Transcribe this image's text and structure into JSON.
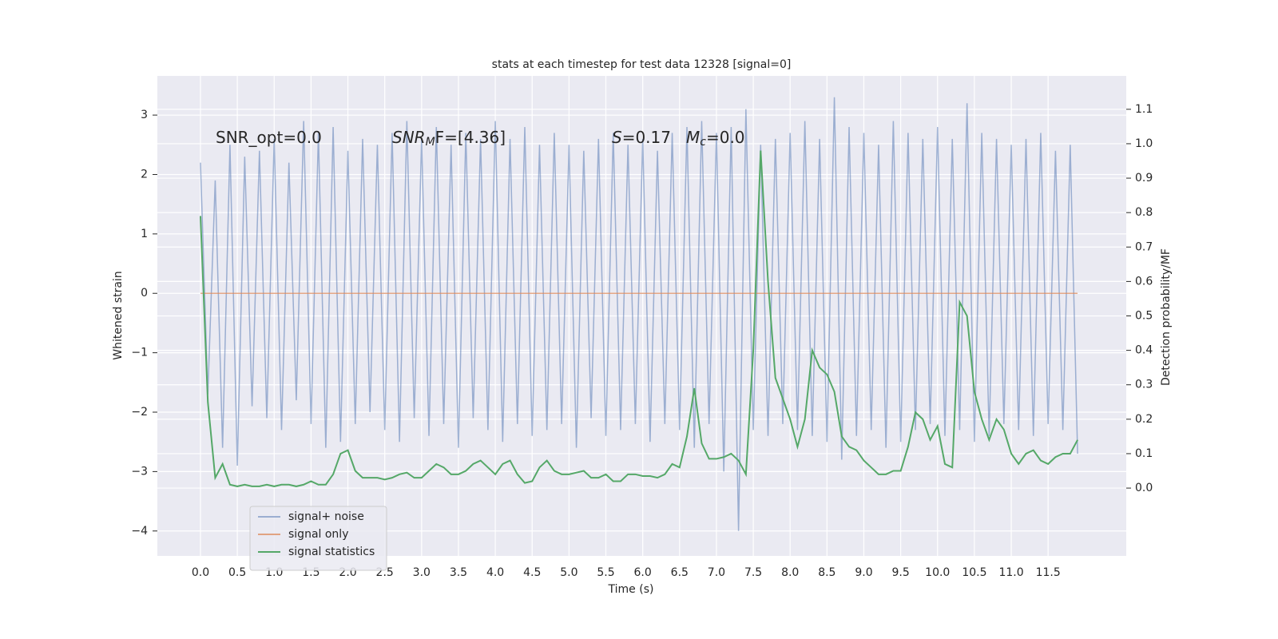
{
  "chart_data": {
    "type": "line",
    "title": "stats at each timestep for test data 12328 [signal=0]",
    "xlabel": "Time (s)",
    "ylabel": "Whitened strain",
    "y2label": "Detection probability/MF",
    "xlim": [
      -0.585,
      12.56
    ],
    "ylim": [
      -4.42,
      3.66
    ],
    "y2lim": [
      -0.197,
      1.197
    ],
    "grid": true,
    "legend": "lower left",
    "xticks": [
      {
        "value": 0,
        "label": "0.0"
      },
      {
        "value": 0.5,
        "label": "0.5"
      },
      {
        "value": 1,
        "label": "1.0"
      },
      {
        "value": 1.5,
        "label": "1.5"
      },
      {
        "value": 2,
        "label": "2.0"
      },
      {
        "value": 2.5,
        "label": "2.5"
      },
      {
        "value": 3,
        "label": "3.0"
      },
      {
        "value": 3.5,
        "label": "3.5"
      },
      {
        "value": 4,
        "label": "4.0"
      },
      {
        "value": 4.5,
        "label": "4.5"
      },
      {
        "value": 5,
        "label": "5.0"
      },
      {
        "value": 5.5,
        "label": "5.5"
      },
      {
        "value": 6,
        "label": "6.0"
      },
      {
        "value": 6.5,
        "label": "6.5"
      },
      {
        "value": 7,
        "label": "7.0"
      },
      {
        "value": 7.5,
        "label": "7.5"
      },
      {
        "value": 8,
        "label": "8.0"
      },
      {
        "value": 8.5,
        "label": "8.5"
      },
      {
        "value": 9,
        "label": "9.0"
      },
      {
        "value": 9.5,
        "label": "9.5"
      },
      {
        "value": 10,
        "label": "10.0"
      },
      {
        "value": 10.5,
        "label": "10.5"
      },
      {
        "value": 11,
        "label": "11.0"
      },
      {
        "value": 11.5,
        "label": "11.5"
      }
    ],
    "yticks": [
      {
        "value": -4,
        "label": "−4"
      },
      {
        "value": -3,
        "label": "−3"
      },
      {
        "value": -2,
        "label": "−2"
      },
      {
        "value": -1,
        "label": "−1"
      },
      0,
      1,
      2,
      3
    ],
    "y2ticks": [
      {
        "value": 0,
        "label": "0.0"
      },
      {
        "value": 0.1,
        "label": "0.1"
      },
      {
        "value": 0.2,
        "label": "0.2"
      },
      {
        "value": 0.3,
        "label": "0.3"
      },
      {
        "value": 0.4,
        "label": "0.4"
      },
      {
        "value": 0.5,
        "label": "0.5"
      },
      {
        "value": 0.6,
        "label": "0.6"
      },
      {
        "value": 0.7,
        "label": "0.7"
      },
      {
        "value": 0.8,
        "label": "0.8"
      },
      {
        "value": 0.9,
        "label": "0.9"
      },
      {
        "value": 1,
        "label": "1.0"
      },
      {
        "value": 1.1,
        "label": "1.1"
      }
    ],
    "annotations": [
      {
        "parts": [
          {
            "text": "SNR_opt=0.0"
          }
        ]
      },
      {
        "parts": [
          {
            "text": "SNR",
            "italic": true
          },
          {
            "text": "M",
            "italic": true,
            "sub": true
          },
          {
            "text": "F=[4.36]"
          }
        ]
      },
      {
        "parts": [
          {
            "text": "S",
            "italic": true
          },
          {
            "text": "=0.17"
          }
        ]
      },
      {
        "parts": [
          {
            "text": "M",
            "italic": true
          },
          {
            "text": "c",
            "italic": true,
            "sub": true
          },
          {
            "text": "=0.0"
          }
        ]
      }
    ],
    "x": [
      0,
      0.1,
      0.2,
      0.3,
      0.4,
      0.5,
      0.6,
      0.7,
      0.8,
      0.9,
      1,
      1.1,
      1.2,
      1.3,
      1.4,
      1.5,
      1.6,
      1.7,
      1.8,
      1.9,
      2,
      2.1,
      2.2,
      2.3,
      2.4,
      2.5,
      2.6,
      2.7,
      2.8,
      2.9,
      3,
      3.1,
      3.2,
      3.3,
      3.4,
      3.5,
      3.6,
      3.7,
      3.8,
      3.9,
      4,
      4.1,
      4.2,
      4.3,
      4.4,
      4.5,
      4.6,
      4.7,
      4.8,
      4.9,
      5,
      5.1,
      5.2,
      5.3,
      5.4,
      5.5,
      5.6,
      5.7,
      5.8,
      5.9,
      6,
      6.1,
      6.2,
      6.3,
      6.4,
      6.5,
      6.6,
      6.7,
      6.8,
      6.9,
      7,
      7.1,
      7.2,
      7.3,
      7.4,
      7.5,
      7.6,
      7.7,
      7.8,
      7.9,
      8,
      8.1,
      8.2,
      8.3,
      8.4,
      8.5,
      8.6,
      8.7,
      8.8,
      8.9,
      9,
      9.1,
      9.2,
      9.3,
      9.4,
      9.5,
      9.6,
      9.7,
      9.8,
      9.9,
      10,
      10.1,
      10.2,
      10.3,
      10.4,
      10.5,
      10.6,
      10.7,
      10.8,
      10.9,
      11,
      11.1,
      11.2,
      11.3,
      11.4,
      11.5,
      11.6,
      11.7,
      11.8,
      11.9
    ],
    "series": [
      {
        "name": "signal+ noise",
        "color": "#4c72b0",
        "opacity": 0.5,
        "values": [
          2.2,
          -1.7,
          1.9,
          -2.6,
          2.5,
          -2.9,
          2.3,
          -1.9,
          2.4,
          -2.1,
          2.6,
          -2.3,
          2.2,
          -1.8,
          2.9,
          -2.2,
          2.7,
          -2.6,
          2.8,
          -2.5,
          2.4,
          -2.2,
          2.6,
          -2.0,
          2.5,
          -2.3,
          2.7,
          -2.5,
          2.9,
          -2.1,
          2.6,
          -2.4,
          2.8,
          -2.2,
          2.5,
          -2.6,
          2.7,
          -2.1,
          2.6,
          -2.3,
          2.9,
          -2.5,
          2.6,
          -2.2,
          2.8,
          -2.4,
          2.5,
          -2.3,
          2.7,
          -2.2,
          2.5,
          -2.6,
          2.4,
          -2.1,
          2.6,
          -2.4,
          2.7,
          -2.3,
          2.5,
          -2.2,
          2.6,
          -2.5,
          2.4,
          -2.2,
          2.7,
          -2.3,
          2.8,
          -2.6,
          2.9,
          -2.2,
          2.7,
          -3.0,
          2.8,
          -4.0,
          3.1,
          -2.3,
          2.5,
          -2.4,
          2.6,
          -2.2,
          2.7,
          -2.3,
          2.9,
          -2.4,
          2.6,
          -2.5,
          3.3,
          -2.8,
          2.8,
          -2.4,
          2.7,
          -2.3,
          2.5,
          -2.6,
          2.9,
          -2.5,
          2.7,
          -2.3,
          2.6,
          -2.2,
          2.8,
          -2.4,
          2.6,
          -2.3,
          3.2,
          -2.5,
          2.7,
          -2.4,
          2.6,
          -2.2,
          2.5,
          -2.3,
          2.6,
          -2.4,
          2.7,
          -2.2,
          2.4,
          -2.3,
          2.5,
          -2.7
        ]
      },
      {
        "name": "signal only",
        "color": "#dd8452",
        "opacity": 0.7,
        "values": [
          0,
          0,
          0,
          0,
          0,
          0,
          0,
          0,
          0,
          0,
          0,
          0,
          0,
          0,
          0,
          0,
          0,
          0,
          0,
          0,
          0,
          0,
          0,
          0,
          0,
          0,
          0,
          0,
          0,
          0,
          0,
          0,
          0,
          0,
          0,
          0,
          0,
          0,
          0,
          0,
          0,
          0,
          0,
          0,
          0,
          0,
          0,
          0,
          0,
          0,
          0,
          0,
          0,
          0,
          0,
          0,
          0,
          0,
          0,
          0,
          0,
          0,
          0,
          0,
          0,
          0,
          0,
          0,
          0,
          0,
          0,
          0,
          0,
          0,
          0,
          0,
          0,
          0,
          0,
          0,
          0,
          0,
          0,
          0,
          0,
          0,
          0,
          0,
          0,
          0,
          0,
          0,
          0,
          0,
          0,
          0,
          0,
          0,
          0,
          0,
          0,
          0,
          0,
          0,
          0,
          0,
          0,
          0,
          0,
          0,
          0,
          0,
          0,
          0,
          0,
          0,
          0,
          0,
          0,
          0
        ]
      },
      {
        "name": "signal statistics",
        "color": "#55a868",
        "opacity": 1,
        "axis": "y2",
        "values": [
          0.79,
          0.25,
          0.03,
          0.07,
          0.01,
          0.005,
          0.01,
          0.005,
          0.005,
          0.01,
          0.005,
          0.01,
          0.01,
          0.005,
          0.01,
          0.02,
          0.01,
          0.01,
          0.04,
          0.1,
          0.11,
          0.05,
          0.03,
          0.03,
          0.03,
          0.025,
          0.03,
          0.04,
          0.045,
          0.03,
          0.03,
          0.05,
          0.07,
          0.06,
          0.04,
          0.04,
          0.05,
          0.07,
          0.08,
          0.06,
          0.04,
          0.07,
          0.08,
          0.04,
          0.015,
          0.02,
          0.06,
          0.08,
          0.05,
          0.04,
          0.04,
          0.045,
          0.05,
          0.03,
          0.03,
          0.04,
          0.02,
          0.02,
          0.04,
          0.04,
          0.035,
          0.035,
          0.03,
          0.04,
          0.07,
          0.06,
          0.15,
          0.29,
          0.13,
          0.085,
          0.085,
          0.09,
          0.1,
          0.08,
          0.04,
          0.4,
          0.98,
          0.6,
          0.32,
          0.26,
          0.2,
          0.12,
          0.2,
          0.4,
          0.35,
          0.33,
          0.28,
          0.15,
          0.12,
          0.11,
          0.08,
          0.06,
          0.04,
          0.04,
          0.05,
          0.05,
          0.12,
          0.22,
          0.2,
          0.14,
          0.18,
          0.07,
          0.06,
          0.54,
          0.5,
          0.28,
          0.2,
          0.14,
          0.2,
          0.17,
          0.1,
          0.07,
          0.1,
          0.11,
          0.08,
          0.07,
          0.09,
          0.1,
          0.1,
          0.14
        ]
      }
    ]
  }
}
